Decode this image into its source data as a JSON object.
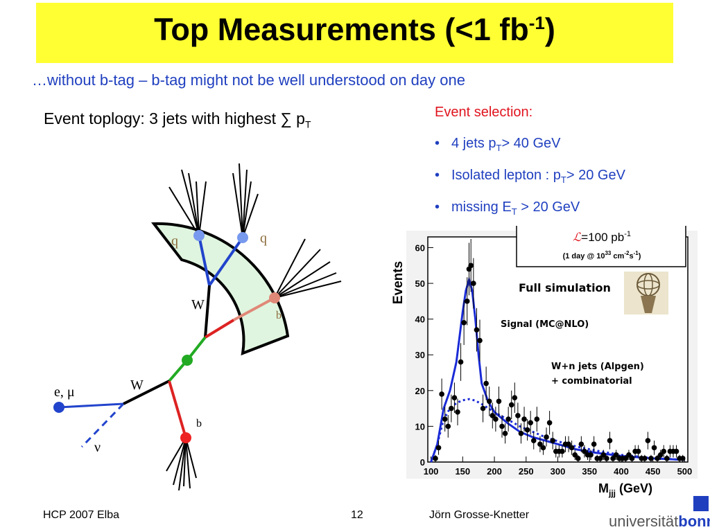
{
  "slide": {
    "title": "Top Measurements (<1 fb",
    "title_sup": "-1",
    "title_close": ")",
    "title_bg": "#ffff33",
    "subtitle": "…without b-tag – b-tag might not be well understood on day one",
    "topology_text": "Event toplogy: 3 jets with highest ∑ p",
    "topology_sub": "T"
  },
  "selection": {
    "heading": "Event selection:",
    "items": [
      {
        "pre": "4 jets p",
        "sub": "T",
        "post": "> 40 GeV"
      },
      {
        "pre": "Isolated lepton : p",
        "sub": "T",
        "post": "> 20 GeV"
      },
      {
        "pre": "missing E",
        "sub": "T",
        "post": " > 20 GeV"
      }
    ]
  },
  "diagram": {
    "labels": {
      "q1": "q",
      "q2": "q",
      "w_top": "W",
      "b_top": "b",
      "lepton": "e, μ",
      "w_bottom": "W",
      "neutrino": "ν",
      "b_bottom": "b"
    }
  },
  "chart_data": {
    "type": "scatter",
    "title": "",
    "xlabel": "M",
    "xlabel_sub": "jjj",
    "xlabel_unit": " (GeV)",
    "ylabel": "Events",
    "xlim": [
      95,
      505
    ],
    "ylim": [
      0,
      63
    ],
    "xticks": [
      100,
      150,
      200,
      250,
      300,
      350,
      400,
      450,
      500
    ],
    "yticks": [
      0,
      10,
      20,
      30,
      40,
      50,
      60
    ],
    "lumi_box": {
      "main": "=100 pb",
      "main_sup": "-1",
      "symbol": "ℒ",
      "detail_pre": "(1 day @ 10",
      "detail_sup1": "33",
      "detail_mid": " cm",
      "detail_sup2": "-2",
      "detail_s": "s",
      "detail_sup3": "-1",
      "detail_post": ")"
    },
    "annotations": {
      "full_sim": "Full simulation",
      "signal": "Signal (MC@NLO)",
      "background_1": "W+n jets (Alpgen)",
      "background_2": "+ combinatorial"
    },
    "series": [
      {
        "name": "",
        "style": "points with error bars",
        "x": [
          107,
          112,
          117,
          122,
          127,
          132,
          137,
          142,
          147,
          152,
          157,
          160,
          163,
          167,
          172,
          177,
          182,
          187,
          192,
          197,
          202,
          207,
          212,
          217,
          222,
          227,
          232,
          237,
          242,
          247,
          252,
          257,
          262,
          267,
          272,
          277,
          282,
          287,
          292,
          297,
          302,
          307,
          312,
          317,
          322,
          327,
          332,
          337,
          342,
          347,
          352,
          357,
          362,
          367,
          372,
          377,
          382,
          387,
          392,
          397,
          402,
          407,
          412,
          417,
          422,
          427,
          432,
          437,
          442,
          447,
          452,
          457,
          462,
          467,
          472,
          477,
          482,
          487,
          492,
          497
        ],
        "y": [
          1,
          4,
          19,
          12,
          10,
          15,
          18,
          14,
          28,
          39,
          45,
          54,
          55,
          50,
          37,
          34,
          15,
          22,
          17,
          13,
          12,
          17,
          10,
          8,
          12,
          16,
          18,
          13,
          8,
          12,
          9,
          11,
          6,
          12,
          5,
          4,
          7,
          11,
          6,
          3,
          3,
          3,
          5,
          5,
          4,
          2,
          1,
          5,
          3,
          2,
          2,
          5,
          1,
          1,
          2,
          1,
          6,
          1,
          2,
          1,
          1,
          1,
          2,
          1,
          3,
          3,
          1,
          1,
          6,
          1,
          4,
          1,
          2,
          3,
          1,
          3,
          3,
          3,
          1,
          1
        ]
      },
      {
        "name": "",
        "style": "solid",
        "color": "#1a2bd6",
        "x": [
          100,
          110,
          120,
          130,
          140,
          150,
          155,
          160,
          165,
          170,
          175,
          180,
          190,
          200,
          220,
          240,
          260,
          280,
          300,
          330,
          360,
          400,
          450,
          500
        ],
        "y": [
          0,
          5,
          15,
          20,
          28,
          42,
          48,
          51,
          48,
          40,
          30,
          22,
          17,
          14,
          11,
          8.5,
          7,
          6,
          5,
          3.5,
          2.6,
          1.7,
          1,
          0.6
        ]
      },
      {
        "name": "",
        "style": "dotted",
        "color": "#1a2bd6",
        "x": [
          100,
          110,
          120,
          130,
          140,
          150,
          160,
          170,
          180,
          200,
          220,
          240,
          260,
          280,
          300,
          330,
          360,
          400,
          450,
          500
        ],
        "y": [
          0,
          5,
          12,
          15,
          16.5,
          17.3,
          17.6,
          17.2,
          16.2,
          14,
          12,
          10,
          8.5,
          7,
          5.8,
          4.3,
          3.2,
          2,
          1.1,
          0.6
        ]
      }
    ]
  },
  "footer": {
    "left": "HCP 2007 Elba",
    "page": "12",
    "author": "Jörn Grosse-Knetter",
    "logo_text_1": "universität",
    "logo_text_2": "bonn"
  }
}
